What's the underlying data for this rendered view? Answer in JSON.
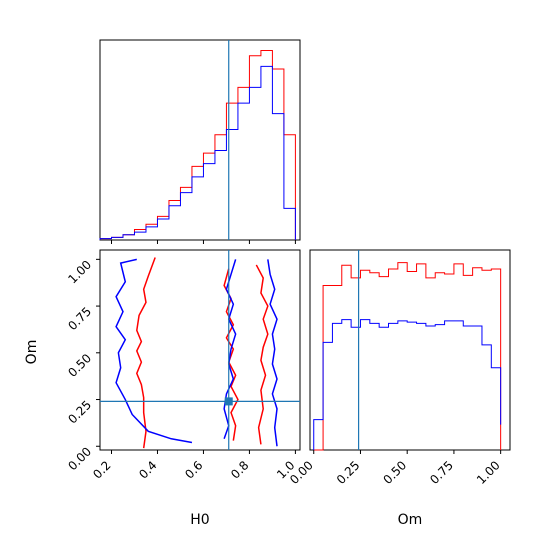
{
  "chart_data": {
    "type": "corner",
    "colors": {
      "series_a": "#ff0000",
      "series_b": "#0000ff",
      "truth": "#1f77b4"
    },
    "truth": {
      "H0": 0.71,
      "Om": 0.24
    },
    "axes": {
      "H0": {
        "label": "H0",
        "range": [
          0.15,
          1.02
        ],
        "ticks": [
          "0.2",
          "0.4",
          "0.6",
          "0.8",
          "1.0"
        ],
        "tick_values": [
          0.2,
          0.4,
          0.6,
          0.8,
          1.0
        ]
      },
      "Om": {
        "label": "Om",
        "range": [
          -0.02,
          1.05
        ],
        "ticks": [
          "0.00",
          "0.25",
          "0.50",
          "0.75",
          "1.00"
        ],
        "tick_values": [
          0.0,
          0.25,
          0.5,
          0.75,
          1.0
        ]
      }
    },
    "hist_H0": {
      "bin_edges": [
        0.15,
        0.2,
        0.25,
        0.3,
        0.35,
        0.4,
        0.45,
        0.5,
        0.55,
        0.6,
        0.65,
        0.7,
        0.75,
        0.8,
        0.85,
        0.9,
        0.95,
        1.0
      ],
      "series": [
        {
          "color": "red",
          "values": [
            0.5,
            1,
            2,
            4,
            6,
            9,
            15,
            20,
            28,
            33,
            40,
            52,
            58,
            70,
            72,
            65,
            40
          ]
        },
        {
          "color": "blue",
          "values": [
            0.5,
            1,
            2,
            3,
            5,
            8,
            13,
            18,
            24,
            29,
            34,
            42,
            52,
            58,
            66,
            48,
            12
          ]
        }
      ]
    },
    "hist_Om": {
      "bin_edges": [
        0.0,
        0.05,
        0.1,
        0.15,
        0.2,
        0.25,
        0.3,
        0.35,
        0.4,
        0.45,
        0.5,
        0.55,
        0.6,
        0.65,
        0.7,
        0.75,
        0.8,
        0.85,
        0.9,
        0.95,
        1.0
      ],
      "series": [
        {
          "color": "red",
          "values": [
            0,
            130,
            130,
            146,
            136,
            142,
            140,
            137,
            143,
            148,
            141,
            147,
            136,
            140,
            139,
            147,
            138,
            144,
            142,
            143,
            0
          ]
        },
        {
          "color": "blue",
          "values": [
            24,
            85,
            100,
            103,
            97,
            103,
            100,
            97,
            100,
            102,
            101,
            100,
            98,
            99,
            102,
            102,
            98,
            98,
            83,
            65,
            20
          ]
        }
      ]
    },
    "contours": [
      {
        "color": "red",
        "paths": [
          [
            [
              0.39,
              1.01
            ],
            [
              0.36,
              0.91
            ],
            [
              0.34,
              0.84
            ],
            [
              0.35,
              0.77
            ],
            [
              0.32,
              0.7
            ],
            [
              0.31,
              0.62
            ],
            [
              0.33,
              0.56
            ],
            [
              0.31,
              0.51
            ],
            [
              0.33,
              0.45
            ],
            [
              0.31,
              0.39
            ],
            [
              0.33,
              0.33
            ],
            [
              0.34,
              0.26
            ],
            [
              0.34,
              0.18
            ],
            [
              0.35,
              0.08
            ],
            [
              0.34,
              -0.01
            ]
          ],
          [
            [
              0.71,
              0.95
            ],
            [
              0.69,
              0.86
            ],
            [
              0.72,
              0.79
            ],
            [
              0.7,
              0.72
            ],
            [
              0.73,
              0.65
            ],
            [
              0.7,
              0.58
            ],
            [
              0.73,
              0.52
            ],
            [
              0.71,
              0.45
            ],
            [
              0.74,
              0.38
            ],
            [
              0.72,
              0.32
            ],
            [
              0.75,
              0.25
            ],
            [
              0.72,
              0.18
            ],
            [
              0.74,
              0.11
            ],
            [
              0.73,
              0.03
            ]
          ],
          [
            [
              0.83,
              0.97
            ],
            [
              0.86,
              0.9
            ],
            [
              0.85,
              0.82
            ],
            [
              0.88,
              0.75
            ],
            [
              0.86,
              0.68
            ],
            [
              0.88,
              0.6
            ],
            [
              0.86,
              0.53
            ],
            [
              0.85,
              0.46
            ],
            [
              0.87,
              0.38
            ],
            [
              0.85,
              0.3
            ],
            [
              0.86,
              0.2
            ],
            [
              0.84,
              0.1
            ],
            [
              0.85,
              0.01
            ]
          ]
        ]
      },
      {
        "color": "blue",
        "paths": [
          [
            [
              0.31,
              1.0
            ],
            [
              0.24,
              0.98
            ],
            [
              0.26,
              0.88
            ],
            [
              0.22,
              0.8
            ],
            [
              0.25,
              0.72
            ],
            [
              0.22,
              0.64
            ],
            [
              0.26,
              0.57
            ],
            [
              0.23,
              0.5
            ],
            [
              0.24,
              0.42
            ],
            [
              0.22,
              0.34
            ],
            [
              0.26,
              0.25
            ],
            [
              0.29,
              0.17
            ],
            [
              0.36,
              0.08
            ],
            [
              0.46,
              0.04
            ],
            [
              0.55,
              0.02
            ]
          ],
          [
            [
              0.74,
              1.0
            ],
            [
              0.72,
              0.92
            ],
            [
              0.7,
              0.84
            ],
            [
              0.73,
              0.76
            ],
            [
              0.71,
              0.68
            ],
            [
              0.74,
              0.6
            ],
            [
              0.72,
              0.52
            ],
            [
              0.71,
              0.44
            ],
            [
              0.73,
              0.36
            ],
            [
              0.7,
              0.28
            ],
            [
              0.69,
              0.2
            ],
            [
              0.71,
              0.11
            ],
            [
              0.69,
              0.04
            ]
          ],
          [
            [
              0.88,
              1.0
            ],
            [
              0.89,
              0.92
            ],
            [
              0.91,
              0.84
            ],
            [
              0.89,
              0.76
            ],
            [
              0.92,
              0.68
            ],
            [
              0.9,
              0.6
            ],
            [
              0.91,
              0.52
            ],
            [
              0.9,
              0.44
            ],
            [
              0.92,
              0.36
            ],
            [
              0.9,
              0.28
            ],
            [
              0.92,
              0.2
            ],
            [
              0.91,
              0.1
            ],
            [
              0.92,
              0.0
            ]
          ]
        ]
      }
    ]
  }
}
